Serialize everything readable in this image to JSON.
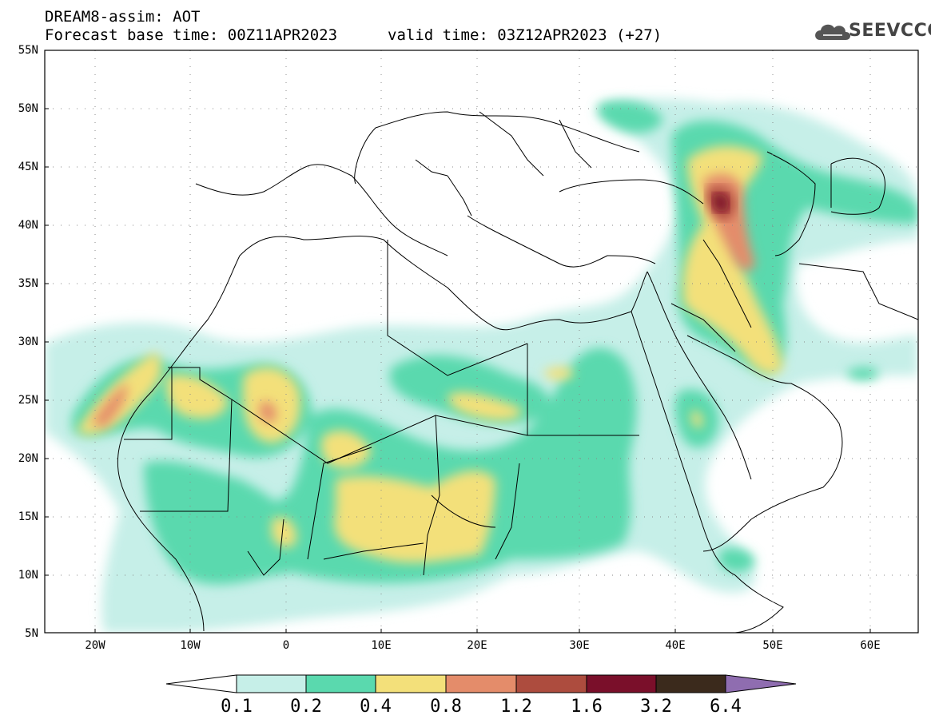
{
  "header": {
    "model_title": "DREAM8-assim: AOT",
    "base_time": "Forecast base time: 00Z11APR2023",
    "valid_time": "valid time: 03Z12APR2023 (+27)",
    "logo_text": "SEEVCCC",
    "logo_icon": "cloud-icon"
  },
  "map": {
    "lon_range": [
      -25,
      65
    ],
    "lat_range": [
      5,
      55
    ],
    "lat_labels": [
      "55N",
      "50N",
      "45N",
      "40N",
      "35N",
      "30N",
      "25N",
      "20N",
      "15N",
      "10N",
      "5N"
    ],
    "lon_labels": [
      "20W",
      "10W",
      "0",
      "10E",
      "20E",
      "30E",
      "40E",
      "50E",
      "60E"
    ],
    "grid": "dotted"
  },
  "colorbar": {
    "levels": [
      "0.1",
      "0.2",
      "0.4",
      "0.8",
      "1.2",
      "1.6",
      "3.2",
      "6.4"
    ],
    "colors": [
      "#c6efe8",
      "#5ad9ae",
      "#f3e07a",
      "#e48c6a",
      "#ad4c3e",
      "#7a0f2a",
      "#3b2a1c",
      "#8f6db0"
    ],
    "under_color": "#ffffff"
  }
}
